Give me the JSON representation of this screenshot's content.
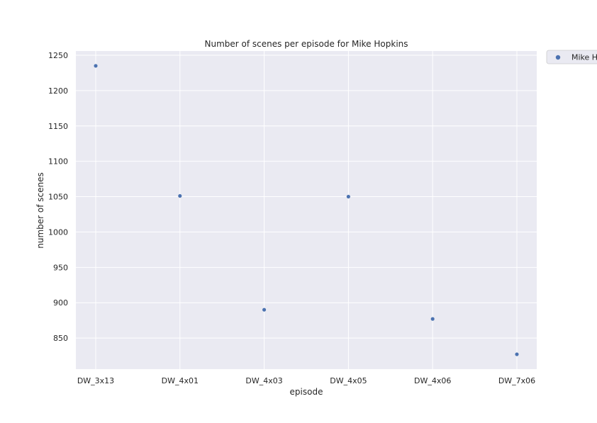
{
  "chart_data": {
    "type": "scatter",
    "title": "Number of scenes per episode for Mike Hopkins",
    "xlabel": "episode",
    "ylabel": "number of scenes",
    "categories": [
      "DW_3x13",
      "DW_4x01",
      "DW_4x03",
      "DW_4x05",
      "DW_4x06",
      "DW_7x06"
    ],
    "series": [
      {
        "name": "Mike Hopkins",
        "values": [
          1235,
          1051,
          890,
          1050,
          877,
          827
        ]
      }
    ],
    "ylim": [
      806,
      1256
    ],
    "yticks": [
      850,
      900,
      950,
      1000,
      1050,
      1100,
      1150,
      1200,
      1250
    ],
    "grid": true,
    "legend": "outside-top-right",
    "colors": {
      "background": "#eaeaf2",
      "grid": "#ffffff",
      "marker": "#4c72b0"
    }
  }
}
